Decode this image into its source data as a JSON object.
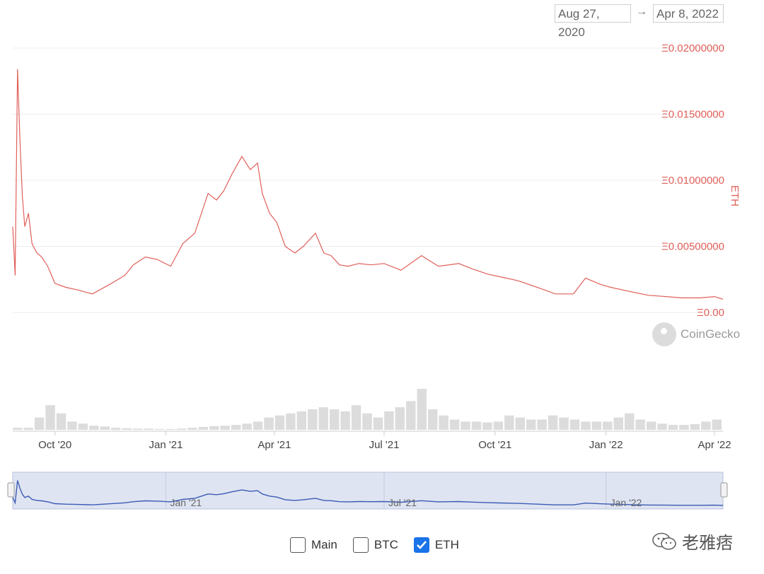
{
  "range": {
    "from": "Aug 27, 2020",
    "arrow": "→",
    "to": "Apr 8, 2022"
  },
  "chart_data": {
    "type": "line",
    "ylabel": "ETH",
    "yticks": [
      "Ξ0.00",
      "Ξ0.00500000",
      "Ξ0.01000000",
      "Ξ0.01500000",
      "Ξ0.02000000"
    ],
    "ylim": [
      0,
      0.02
    ],
    "xticks": [
      "Oct '20",
      "Jan '21",
      "Apr '21",
      "Jul '21",
      "Oct '21",
      "Jan '22",
      "Apr '22"
    ],
    "navigator_labels": [
      "Jan '21",
      "Jul '21",
      "Jan '22"
    ],
    "color": "#e0605a",
    "navigator_color": "#3b5bb5",
    "x_start": "2020-08-27",
    "x_end": "2022-04-08",
    "series": [
      {
        "x": [
          "2020-08-27",
          "2020-08-29",
          "2020-08-31",
          "2020-09-02",
          "2020-09-04",
          "2020-09-06",
          "2020-09-09",
          "2020-09-12",
          "2020-09-16",
          "2020-09-20",
          "2020-09-25",
          "2020-10-01",
          "2020-10-10",
          "2020-10-20",
          "2020-11-01",
          "2020-11-15",
          "2020-11-28",
          "2020-12-05",
          "2020-12-15",
          "2020-12-25",
          "2021-01-05",
          "2021-01-15",
          "2021-01-25",
          "2021-02-05",
          "2021-02-12",
          "2021-02-18",
          "2021-02-25",
          "2021-03-05",
          "2021-03-12",
          "2021-03-18",
          "2021-03-22",
          "2021-03-28",
          "2021-04-03",
          "2021-04-10",
          "2021-04-18",
          "2021-04-25",
          "2021-05-05",
          "2021-05-12",
          "2021-05-18",
          "2021-05-25",
          "2021-06-01",
          "2021-06-10",
          "2021-06-20",
          "2021-07-01",
          "2021-07-15",
          "2021-08-01",
          "2021-08-15",
          "2021-09-01",
          "2021-09-12",
          "2021-09-25",
          "2021-10-05",
          "2021-10-20",
          "2021-11-05",
          "2021-11-20",
          "2021-12-05",
          "2021-12-15",
          "2021-12-28",
          "2022-01-05",
          "2022-01-20",
          "2022-02-05",
          "2022-02-20",
          "2022-03-05",
          "2022-03-20",
          "2022-04-01",
          "2022-04-08"
        ],
        "values": [
          0.0065,
          0.0028,
          0.0184,
          0.013,
          0.0088,
          0.0065,
          0.0075,
          0.0052,
          0.0045,
          0.0042,
          0.0035,
          0.0022,
          0.0019,
          0.0017,
          0.0014,
          0.0021,
          0.0028,
          0.0036,
          0.0042,
          0.004,
          0.0035,
          0.0052,
          0.006,
          0.009,
          0.0085,
          0.0092,
          0.0105,
          0.0118,
          0.0108,
          0.0113,
          0.009,
          0.0075,
          0.0068,
          0.005,
          0.0045,
          0.005,
          0.006,
          0.0045,
          0.0043,
          0.0036,
          0.0035,
          0.0037,
          0.0036,
          0.0037,
          0.0032,
          0.0043,
          0.0035,
          0.0037,
          0.0033,
          0.0029,
          0.0027,
          0.0024,
          0.0019,
          0.0014,
          0.0014,
          0.0026,
          0.0021,
          0.0019,
          0.0016,
          0.0013,
          0.0012,
          0.0011,
          0.0011,
          0.0012,
          0.001
        ]
      }
    ],
    "volume": [
      0.05,
      0.05,
      0.3,
      0.6,
      0.4,
      0.2,
      0.15,
      0.1,
      0.08,
      0.05,
      0.04,
      0.03,
      0.03,
      0.02,
      0.02,
      0.03,
      0.05,
      0.07,
      0.09,
      0.1,
      0.12,
      0.15,
      0.2,
      0.3,
      0.35,
      0.4,
      0.45,
      0.5,
      0.55,
      0.5,
      0.45,
      0.6,
      0.4,
      0.3,
      0.45,
      0.55,
      0.7,
      1.0,
      0.5,
      0.35,
      0.25,
      0.2,
      0.2,
      0.18,
      0.2,
      0.35,
      0.3,
      0.25,
      0.25,
      0.35,
      0.3,
      0.25,
      0.2,
      0.2,
      0.2,
      0.3,
      0.4,
      0.25,
      0.2,
      0.15,
      0.12,
      0.12,
      0.14,
      0.2,
      0.25
    ]
  },
  "branding": {
    "logo": "CoinGecko",
    "watermark": "老雅痞"
  },
  "legend": [
    {
      "label": "Main",
      "checked": false
    },
    {
      "label": "BTC",
      "checked": false
    },
    {
      "label": "ETH",
      "checked": true
    }
  ]
}
